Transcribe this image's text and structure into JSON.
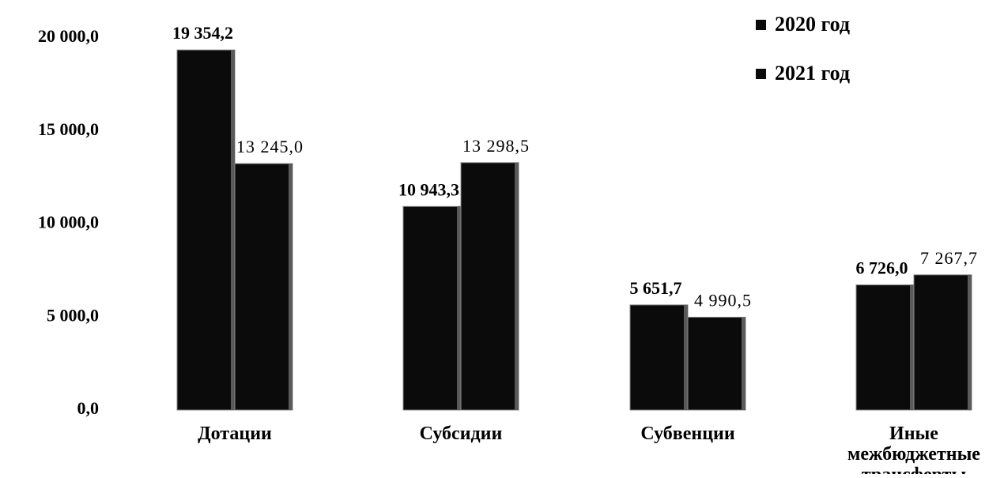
{
  "chart_data": {
    "type": "bar",
    "categories": [
      "Дотации",
      "Субсидии",
      "Субвенции",
      "Иные межбюджетные трансферты"
    ],
    "category_lines": [
      [
        "Дотации"
      ],
      [
        "Субсидии"
      ],
      [
        "Субвенции"
      ],
      [
        "Иные",
        "межбюджетные",
        "трансферты"
      ]
    ],
    "series": [
      {
        "name": "2020 год",
        "values": [
          19354.2,
          10943.3,
          5651.7,
          6726.0
        ],
        "labels": [
          "19 354,2",
          "10 943,3",
          "5 651,7",
          "6 726,0"
        ]
      },
      {
        "name": "2021 год",
        "values": [
          13245.0,
          13298.5,
          4990.5,
          7267.7
        ],
        "labels": [
          "13 245,0",
          "13 298,5",
          "4 990,5",
          "7 267,7"
        ]
      }
    ],
    "yticks": [
      0,
      5000,
      10000,
      15000,
      20000
    ],
    "ytick_labels": [
      "0,0",
      "5 000,0",
      "10 000,0",
      "15 000,0",
      "20 000,0"
    ],
    "ylim": [
      0,
      20000
    ],
    "title": "",
    "xlabel": "",
    "ylabel": "",
    "grid": false,
    "legend_position": "top-right",
    "colors": {
      "bar": "#0b0b0b",
      "bar_edge": "#8a8a8a",
      "text": "#000000"
    }
  }
}
